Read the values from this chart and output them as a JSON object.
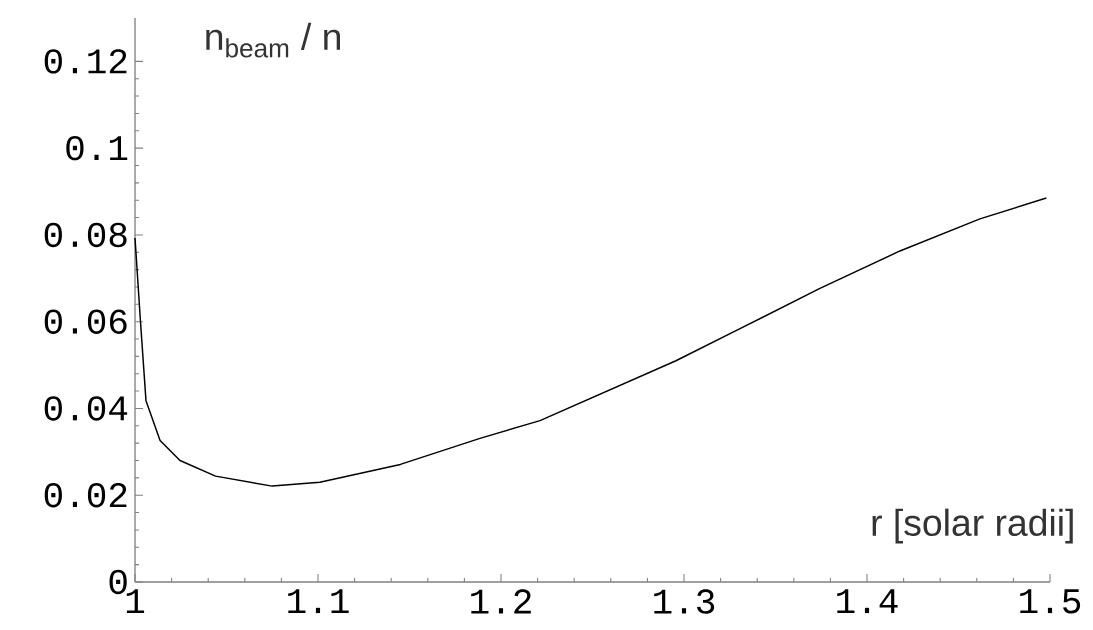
{
  "chart_data": {
    "type": "line",
    "xlabel": "r [solar radii]",
    "ylabel": "n$_{beam}$ / n",
    "x": [
      1.0,
      1.003,
      1.006,
      1.0137,
      1.0246,
      1.044,
      1.075,
      1.101,
      1.145,
      1.1885,
      1.2213,
      1.2956,
      1.3306,
      1.374,
      1.418,
      1.4617,
      1.498
    ],
    "series": [
      {
        "color": "#000000",
        "values": [
          0.0793,
          0.06,
          0.0418,
          0.0326,
          0.028,
          0.0244,
          0.0221,
          0.023,
          0.0271,
          0.0331,
          0.0372,
          0.051,
          0.0584,
          0.0676,
          0.0763,
          0.0837,
          0.0885
        ]
      }
    ],
    "xlim": [
      1,
      1.5
    ],
    "ylim": [
      0,
      0.13
    ],
    "xticks": [
      1,
      1.1,
      1.2,
      1.3,
      1.4,
      1.5
    ],
    "yticks": [
      0,
      0.02,
      0.04,
      0.06,
      0.08,
      0.1,
      0.12
    ]
  }
}
